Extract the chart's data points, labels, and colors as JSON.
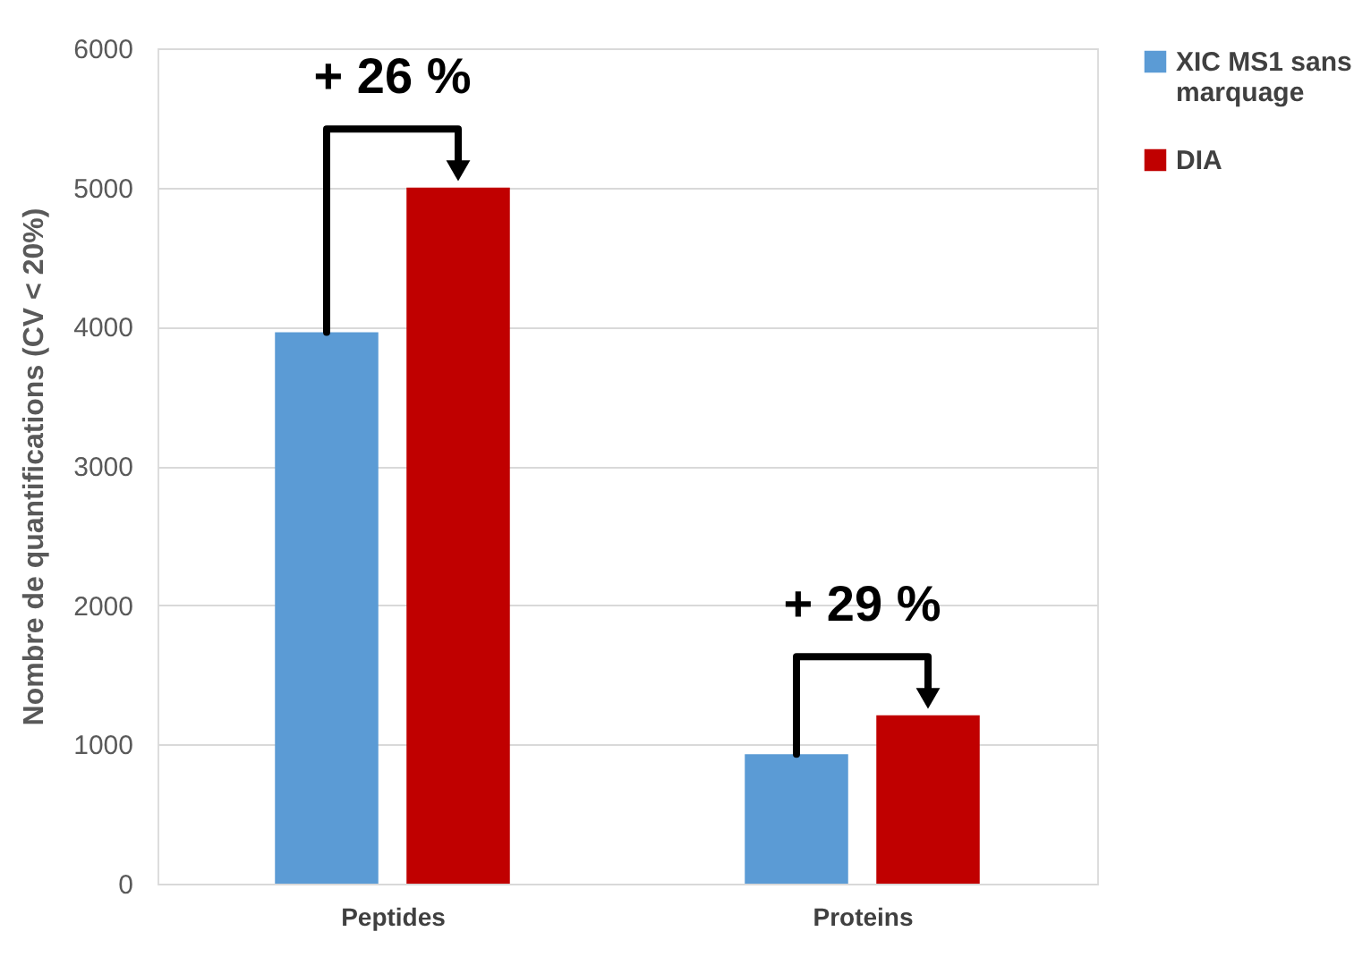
{
  "chart_data": {
    "type": "bar",
    "ylabel": "Nombre de quantifications (CV < 20%)",
    "categories": [
      "Peptides",
      "Proteins"
    ],
    "series": [
      {
        "name": "XIC MS1 sans marquage",
        "color": "#5b9bd5",
        "values": [
          3960,
          930
        ]
      },
      {
        "name": "DIA",
        "color": "#c00000",
        "values": [
          5000,
          1210
        ]
      }
    ],
    "ylim": [
      0,
      6000
    ],
    "yticks": [
      0,
      1000,
      2000,
      3000,
      4000,
      5000,
      6000
    ],
    "grid": "y",
    "legend": "right",
    "annotations": [
      "+ 26 %",
      "+ 29 %"
    ]
  }
}
